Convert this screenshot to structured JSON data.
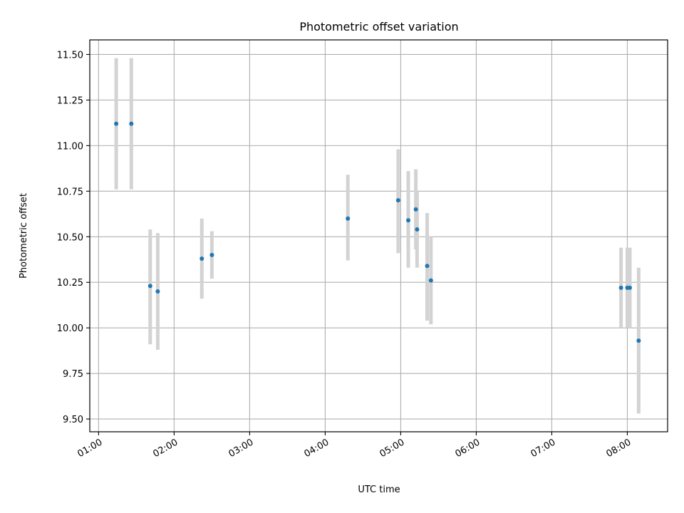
{
  "chart_data": {
    "type": "scatter",
    "title": "Photometric offset variation",
    "xlabel": "UTC time",
    "ylabel": "Photometric offset",
    "x_unit": "UTC time (HH:MM)",
    "xlim": [
      "00:53",
      "08:32"
    ],
    "ylim": [
      9.43,
      11.58
    ],
    "x_ticks": [
      "01:00",
      "02:00",
      "03:00",
      "04:00",
      "05:00",
      "06:00",
      "07:00",
      "08:00"
    ],
    "y_ticks": [
      "9.50",
      "9.75",
      "10.00",
      "10.25",
      "10.50",
      "10.75",
      "11.00",
      "11.25",
      "11.50"
    ],
    "grid": true,
    "legend": "none",
    "colors": {
      "points": "#1f77b4",
      "error_bars": "#d3d3d3",
      "grid": "#b0b0b0"
    },
    "points": [
      {
        "time": "01:14",
        "y": 11.12,
        "lo": 10.76,
        "hi": 11.48
      },
      {
        "time": "01:26",
        "y": 11.12,
        "lo": 10.76,
        "hi": 11.48
      },
      {
        "time": "01:41",
        "y": 10.23,
        "lo": 9.91,
        "hi": 10.54
      },
      {
        "time": "01:47",
        "y": 10.2,
        "lo": 9.88,
        "hi": 10.52
      },
      {
        "time": "02:22",
        "y": 10.38,
        "lo": 10.16,
        "hi": 10.6
      },
      {
        "time": "02:30",
        "y": 10.4,
        "lo": 10.27,
        "hi": 10.53
      },
      {
        "time": "04:18",
        "y": 10.6,
        "lo": 10.37,
        "hi": 10.84
      },
      {
        "time": "04:58",
        "y": 10.7,
        "lo": 10.41,
        "hi": 10.98
      },
      {
        "time": "05:06",
        "y": 10.59,
        "lo": 10.33,
        "hi": 10.86
      },
      {
        "time": "05:12",
        "y": 10.65,
        "lo": 10.43,
        "hi": 10.87
      },
      {
        "time": "05:13",
        "y": 10.54,
        "lo": 10.33,
        "hi": 10.75
      },
      {
        "time": "05:21",
        "y": 10.34,
        "lo": 10.04,
        "hi": 10.63
      },
      {
        "time": "05:24",
        "y": 10.26,
        "lo": 10.02,
        "hi": 10.5
      },
      {
        "time": "07:55",
        "y": 10.22,
        "lo": 10.0,
        "hi": 10.44
      },
      {
        "time": "08:00",
        "y": 10.22,
        "lo": 10.0,
        "hi": 10.44
      },
      {
        "time": "08:02",
        "y": 10.22,
        "lo": 10.0,
        "hi": 10.44
      },
      {
        "time": "08:09",
        "y": 9.93,
        "lo": 9.53,
        "hi": 10.33
      }
    ]
  }
}
